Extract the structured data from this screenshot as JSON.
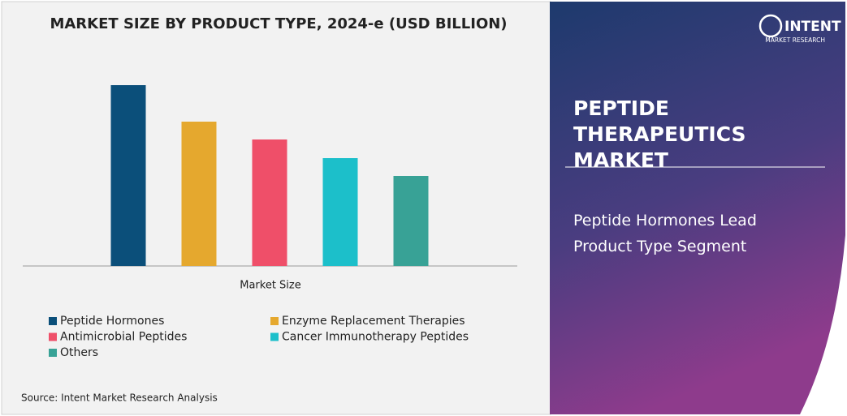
{
  "chart_data": {
    "type": "bar",
    "title": "MARKET SIZE BY PRODUCT TYPE, 2024-e (USD BILLION)",
    "x_label": "Market Size",
    "categories": [
      "Peptide Hormones",
      "Enzyme Replacement Therapies",
      "Antimicrobial Peptides",
      "Cancer Immunotherapy Peptides",
      "Others"
    ],
    "values": [
      223,
      178,
      156,
      133,
      111
    ],
    "colors": [
      "#0b4f7a",
      "#e5a82e",
      "#ef4f69",
      "#1cbfca",
      "#38a296"
    ],
    "ylim": [
      0,
      250
    ],
    "grid": false
  },
  "brand": {
    "name": "INTENT",
    "tagline": "MARKET RESEARCH"
  },
  "headline": "PEPTIDE THERAPEUTICS MARKET",
  "subheadline": "Peptide Hormones Lead Product Type Segment",
  "source": "Source: Intent Market Research Analysis"
}
